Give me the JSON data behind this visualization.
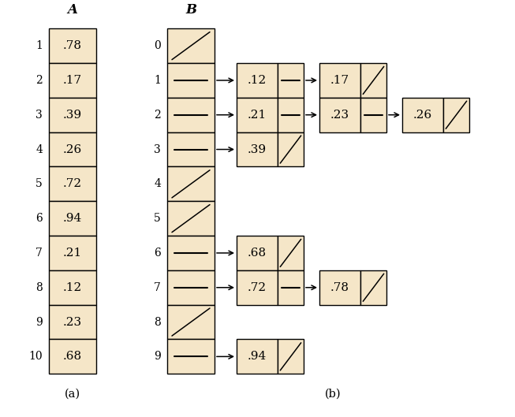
{
  "bg_color": "#ffffff",
  "cell_fill": "#f5e6c8",
  "cell_edge": "#000000",
  "array_A": {
    "label": "A",
    "indices": [
      1,
      2,
      3,
      4,
      5,
      6,
      7,
      8,
      9,
      10
    ],
    "values": [
      ".78",
      ".17",
      ".39",
      ".26",
      ".72",
      ".94",
      ".21",
      ".12",
      ".23",
      ".68"
    ]
  },
  "linked_lists": {
    "0": [],
    "1": [
      ".12",
      ".17"
    ],
    "2": [
      ".21",
      ".23",
      ".26"
    ],
    "3": [
      ".39"
    ],
    "4": [],
    "5": [],
    "6": [
      ".68"
    ],
    "7": [
      ".72",
      ".78"
    ],
    "8": [],
    "9": [
      ".94"
    ]
  },
  "null_buckets": [
    0,
    4,
    5,
    8
  ],
  "label_a": "A",
  "label_b": "B",
  "caption_a": "(a)",
  "caption_b": "(b)"
}
